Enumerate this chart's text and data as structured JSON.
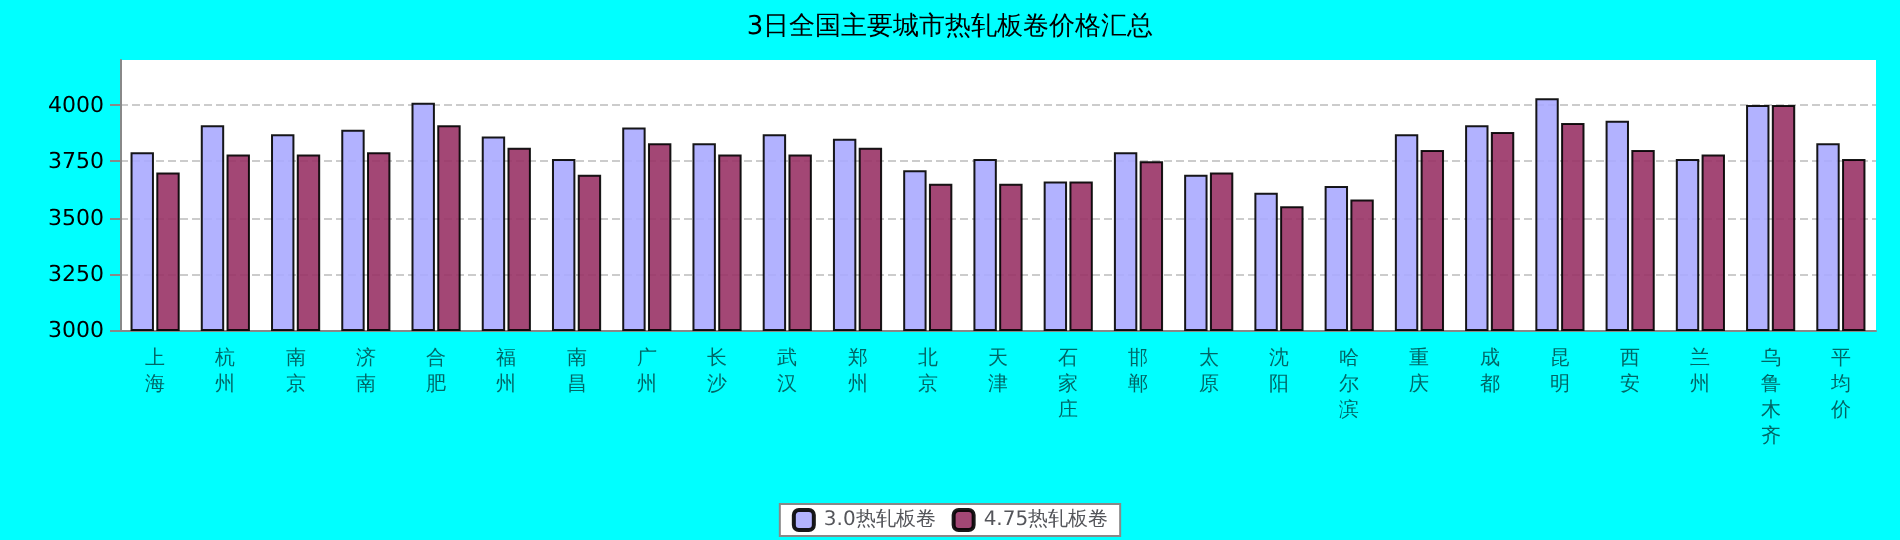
{
  "chart_data": {
    "type": "bar",
    "title": "3日全国主要城市热轧板卷价格汇总",
    "categories": [
      "上海",
      "杭州",
      "南京",
      "济南",
      "合肥",
      "福州",
      "南昌",
      "广州",
      "长沙",
      "武汉",
      "郑州",
      "北京",
      "天津",
      "石家庄",
      "邯郸",
      "太原",
      "沈阳",
      "哈尔滨",
      "重庆",
      "成都",
      "昆明",
      "西安",
      "兰州",
      "乌鲁木齐",
      "平均价"
    ],
    "series": [
      {
        "name": "3.0热轧板卷",
        "color": "#aaaaff",
        "values": [
          3790,
          3910,
          3870,
          3890,
          4010,
          3860,
          3760,
          3900,
          3830,
          3870,
          3850,
          3710,
          3760,
          3660,
          3790,
          3690,
          3610,
          3640,
          3870,
          3910,
          4030,
          3930,
          3760,
          4000,
          3830
        ]
      },
      {
        "name": "4.75热轧板卷",
        "color": "#993366",
        "values": [
          3700,
          3780,
          3780,
          3790,
          3910,
          3810,
          3690,
          3830,
          3780,
          3780,
          3810,
          3650,
          3650,
          3660,
          3750,
          3700,
          3550,
          3580,
          3800,
          3880,
          3920,
          3800,
          3780,
          4000,
          3760
        ]
      }
    ],
    "ylim": [
      3000,
      4200
    ],
    "yticks": [
      3000,
      3250,
      3500,
      3750,
      4000
    ],
    "grid": "y",
    "legend": "bottom"
  }
}
